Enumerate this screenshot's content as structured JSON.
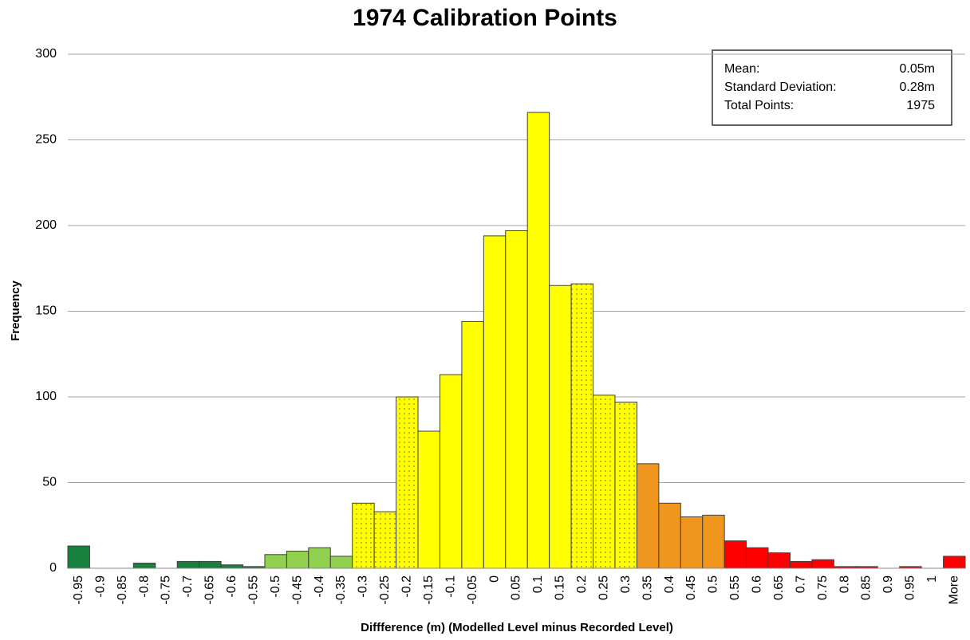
{
  "chart_data": {
    "type": "bar",
    "title": "1974 Calibration Points",
    "x_label": "Diffference (m) (Modelled Level minus Recorded Level)",
    "y_label": "Frequency",
    "categories": [
      "-0.95",
      "-0.9",
      "-0.85",
      "-0.8",
      "-0.75",
      "-0.7",
      "-0.65",
      "-0.6",
      "-0.55",
      "-0.5",
      "-0.45",
      "-0.4",
      "-0.35",
      "-0.3",
      "-0.25",
      "-0.2",
      "-0.15",
      "-0.1",
      "-0.05",
      "0",
      "0.05",
      "0.1",
      "0.15",
      "0.2",
      "0.25",
      "0.3",
      "0.35",
      "0.4",
      "0.45",
      "0.5",
      "0.55",
      "0.6",
      "0.65",
      "0.7",
      "0.75",
      "0.8",
      "0.85",
      "0.9",
      "0.95",
      "1",
      "More"
    ],
    "values": [
      13,
      0,
      0,
      3,
      0,
      4,
      4,
      2,
      1,
      8,
      10,
      12,
      7,
      38,
      33,
      100,
      80,
      113,
      144,
      194,
      197,
      266,
      165,
      166,
      101,
      97,
      61,
      38,
      30,
      31,
      16,
      12,
      9,
      4,
      5,
      1,
      1,
      0,
      1,
      0,
      7
    ],
    "colors": [
      "#17803c",
      "#17803c",
      "#17803c",
      "#17803c",
      "#17803c",
      "#17803c",
      "#17803c",
      "#17803c",
      "#17803c",
      "#92d050",
      "#92d050",
      "#92d050",
      "#92d050",
      "#ffff00",
      "#ffff00",
      "#ffff00",
      "#ffff00",
      "#ffff00",
      "#ffff00",
      "#ffff00",
      "#ffff00",
      "#ffff00",
      "#ffff00",
      "#ffff00",
      "#ffff00",
      "#ffff00",
      "#f0961e",
      "#f0961e",
      "#f0961e",
      "#f0961e",
      "#ff0000",
      "#ff0000",
      "#ff0000",
      "#ff0000",
      "#ff0000",
      "#ff0000",
      "#ff0000",
      "#ff0000",
      "#ff0000",
      "#ff0000",
      "#ff0000"
    ],
    "dotted": [
      false,
      false,
      false,
      false,
      false,
      false,
      false,
      false,
      false,
      false,
      false,
      false,
      false,
      true,
      true,
      true,
      false,
      false,
      false,
      false,
      false,
      false,
      false,
      true,
      true,
      true,
      false,
      false,
      false,
      false,
      false,
      false,
      false,
      false,
      false,
      false,
      false,
      false,
      false,
      false,
      false
    ],
    "ylim": [
      0,
      300
    ],
    "yticks": [
      0,
      50,
      100,
      150,
      200,
      250,
      300
    ],
    "grid": true,
    "annotations": [
      {
        "label": "Mean:",
        "value": "0.05m"
      },
      {
        "label": "Standard Deviation:",
        "value": "0.28m"
      },
      {
        "label": "Total Points:",
        "value": "1975"
      }
    ]
  }
}
